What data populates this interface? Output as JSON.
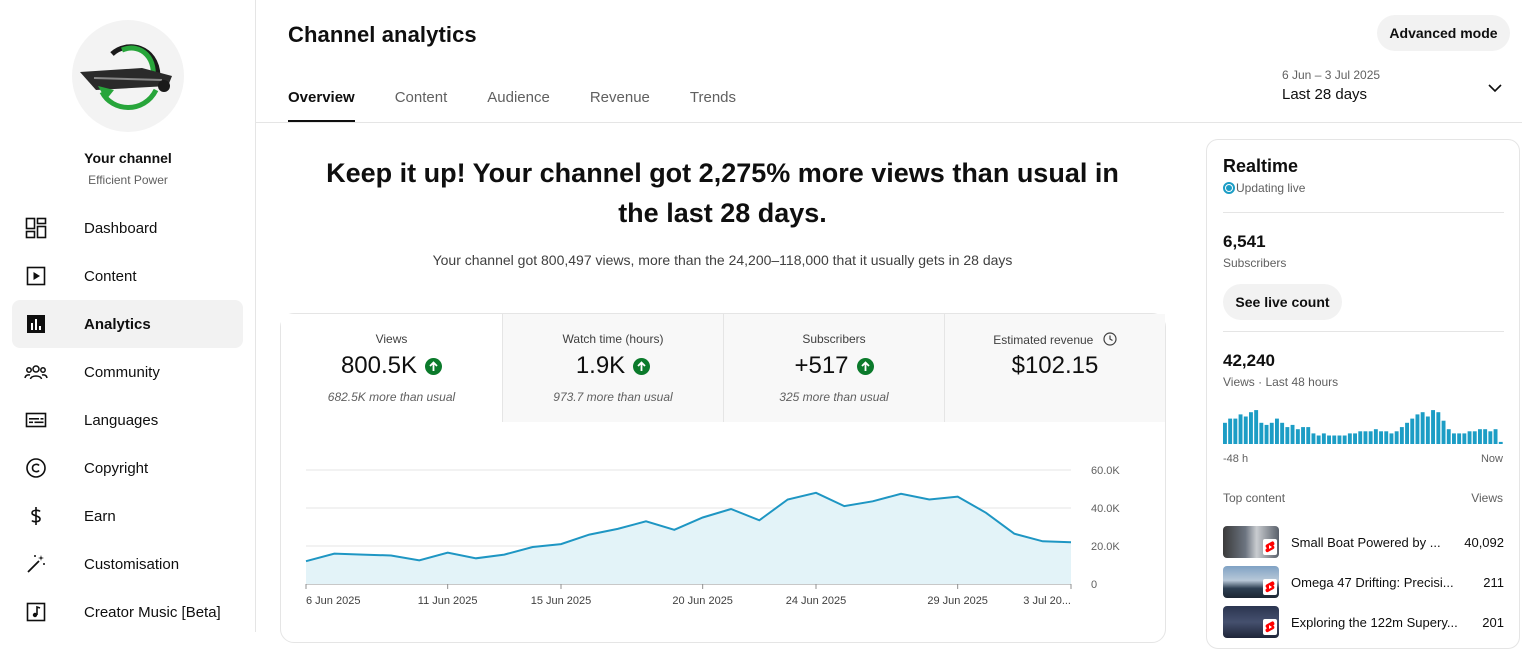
{
  "sidebar": {
    "channel_name": "Your channel",
    "channel_handle": "Efficient Power",
    "items": [
      {
        "label": "Dashboard",
        "icon": "dashboard-icon"
      },
      {
        "label": "Content",
        "icon": "content-icon"
      },
      {
        "label": "Analytics",
        "icon": "analytics-icon",
        "active": true
      },
      {
        "label": "Community",
        "icon": "community-icon"
      },
      {
        "label": "Languages",
        "icon": "subtitles-icon"
      },
      {
        "label": "Copyright",
        "icon": "copyright-icon"
      },
      {
        "label": "Earn",
        "icon": "dollar-icon"
      },
      {
        "label": "Customisation",
        "icon": "magic-wand-icon"
      },
      {
        "label": "Creator Music [Beta]",
        "icon": "music-icon"
      }
    ]
  },
  "header": {
    "title": "Channel analytics",
    "advanced_mode": "Advanced mode",
    "tabs": [
      "Overview",
      "Content",
      "Audience",
      "Revenue",
      "Trends"
    ],
    "date_range": "6 Jun – 3 Jul 2025",
    "date_preset": "Last 28 days"
  },
  "headline": "Keep it up! Your channel got 2,275% more views than usual in the last 28 days.",
  "subline": "Your channel got 800,497 views, more than the 24,200–118,000 that it usually gets in 28 days",
  "metrics": [
    {
      "label": "Views",
      "value": "800.5K",
      "note": "682.5K more than usual",
      "up": true
    },
    {
      "label": "Watch time (hours)",
      "value": "1.9K",
      "note": "973.7 more than usual",
      "up": true
    },
    {
      "label": "Subscribers",
      "value": "+517",
      "note": "325 more than usual",
      "up": true
    },
    {
      "label": "Estimated revenue",
      "value": "$102.15",
      "note": "",
      "up": false
    }
  ],
  "chart_data": {
    "type": "area",
    "x": [
      "6 Jun 2025",
      "7 Jun 2025",
      "8 Jun 2025",
      "9 Jun 2025",
      "10 Jun 2025",
      "11 Jun 2025",
      "12 Jun 2025",
      "13 Jun 2025",
      "14 Jun 2025",
      "15 Jun 2025",
      "16 Jun 2025",
      "17 Jun 2025",
      "18 Jun 2025",
      "19 Jun 2025",
      "20 Jun 2025",
      "21 Jun 2025",
      "22 Jun 2025",
      "23 Jun 2025",
      "24 Jun 2025",
      "25 Jun 2025",
      "26 Jun 2025",
      "27 Jun 2025",
      "28 Jun 2025",
      "29 Jun 2025",
      "30 Jun 2025",
      "1 Jul 2025",
      "2 Jul 2025",
      "3 Jul 2025"
    ],
    "values": [
      12000,
      16000,
      15500,
      15000,
      12500,
      16500,
      13500,
      15500,
      19500,
      21000,
      26000,
      29000,
      33000,
      28500,
      35000,
      39500,
      33500,
      44500,
      48000,
      41000,
      43500,
      47500,
      44500,
      46000,
      37500,
      26500,
      22500,
      22000
    ],
    "x_tick_labels": [
      "6 Jun 2025",
      "11 Jun 2025",
      "15 Jun 2025",
      "20 Jun 2025",
      "24 Jun 2025",
      "29 Jun 2025",
      "3 Jul 20..."
    ],
    "y_tick_labels": [
      "0",
      "20.0K",
      "40.0K",
      "60.0K"
    ],
    "ylim": [
      0,
      60000
    ],
    "color": "#1e96c3",
    "fill_color": "#e3f3f8",
    "grid": true
  },
  "realtime": {
    "title": "Realtime",
    "live_label": "Updating live",
    "subscribers": "6,541",
    "subscribers_label": "Subscribers",
    "see_live_count": "See live count",
    "views": "42,240",
    "views_label": "Views · Last 48 hours",
    "axis_left": "-48 h",
    "axis_right": "Now",
    "bars": [
      20,
      24,
      24,
      28,
      26,
      30,
      32,
      20,
      18,
      20,
      24,
      20,
      16,
      18,
      14,
      16,
      16,
      10,
      8,
      10,
      8,
      8,
      8,
      8,
      10,
      10,
      12,
      12,
      12,
      14,
      12,
      12,
      10,
      12,
      16,
      20,
      24,
      28,
      30,
      26,
      32,
      30,
      22,
      14,
      10,
      10,
      10,
      12,
      12,
      14,
      14,
      12,
      14,
      2
    ],
    "bar_color": "#1c9dc5",
    "top_content_label": "Top content",
    "top_content_views_label": "Views",
    "top_content": [
      {
        "title": "Small Boat Powered by ...",
        "views": "40,092"
      },
      {
        "title": "Omega 47 Drifting: Precisi...",
        "views": "211"
      },
      {
        "title": "Exploring the 122m Supery...",
        "views": "201"
      }
    ]
  }
}
